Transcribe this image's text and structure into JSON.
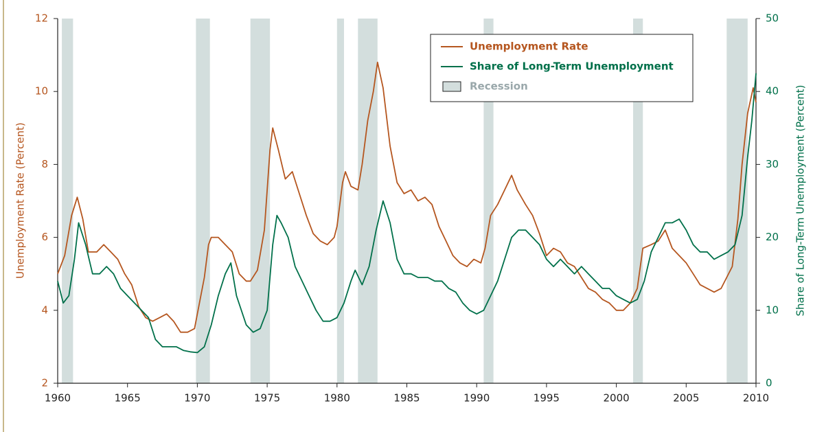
{
  "chart_data": {
    "type": "line",
    "y_label": "Unemployment Rate (Percent)",
    "y2_label": "Share of Long-Term Unemployment (Percent)",
    "xlim": [
      1960,
      2010
    ],
    "xticks": [
      1960,
      1965,
      1970,
      1975,
      1980,
      1985,
      1990,
      1995,
      2000,
      2005,
      2010
    ],
    "ylim": [
      2,
      12
    ],
    "yticks": [
      2,
      4,
      6,
      8,
      10,
      12
    ],
    "y2lim": [
      0,
      50
    ],
    "y2ticks": [
      0,
      10,
      20,
      30,
      40,
      50
    ],
    "legend": "upper right",
    "recession_label": "Recession",
    "recession_color": "#d3dedd",
    "recessions": [
      [
        1960.3,
        1961.1
      ],
      [
        1969.9,
        1970.9
      ],
      [
        1973.8,
        1975.2
      ],
      [
        1980.0,
        1980.5
      ],
      [
        1981.5,
        1982.9
      ],
      [
        1990.5,
        1991.2
      ],
      [
        2001.2,
        2001.9
      ],
      [
        2007.9,
        2009.4
      ]
    ],
    "series": [
      {
        "name": "Unemployment Rate",
        "color": "#b5561f",
        "axis": "y",
        "x": [
          1960.0,
          1960.5,
          1961.0,
          1961.4,
          1961.8,
          1962.2,
          1962.8,
          1963.3,
          1963.8,
          1964.3,
          1964.8,
          1965.3,
          1965.8,
          1966.3,
          1966.8,
          1967.3,
          1967.8,
          1968.3,
          1968.8,
          1969.3,
          1969.8,
          1970.0,
          1970.5,
          1970.8,
          1971.0,
          1971.5,
          1972.0,
          1972.5,
          1973.0,
          1973.5,
          1973.8,
          1974.3,
          1974.8,
          1975.2,
          1975.4,
          1975.8,
          1976.3,
          1976.8,
          1977.3,
          1977.8,
          1978.3,
          1978.8,
          1979.3,
          1979.8,
          1980.0,
          1980.4,
          1980.6,
          1981.0,
          1981.5,
          1981.8,
          1982.2,
          1982.6,
          1982.9,
          1983.3,
          1983.8,
          1984.3,
          1984.8,
          1985.3,
          1985.8,
          1986.3,
          1986.8,
          1987.3,
          1987.8,
          1988.3,
          1988.8,
          1989.3,
          1989.8,
          1990.3,
          1990.6,
          1991.0,
          1991.5,
          1992.0,
          1992.5,
          1992.9,
          1993.5,
          1994.0,
          1994.5,
          1995.0,
          1995.5,
          1996.0,
          1996.5,
          1997.0,
          1997.5,
          1998.0,
          1998.5,
          1999.0,
          1999.5,
          2000.0,
          2000.5,
          2001.0,
          2001.5,
          2001.9,
          2002.5,
          2003.0,
          2003.5,
          2004.0,
          2004.5,
          2005.0,
          2005.5,
          2006.0,
          2006.5,
          2007.0,
          2007.5,
          2007.9,
          2008.3,
          2008.7,
          2009.0,
          2009.4,
          2009.8,
          2010.0
        ],
        "values": [
          5.0,
          5.5,
          6.6,
          7.1,
          6.5,
          5.6,
          5.6,
          5.8,
          5.6,
          5.4,
          5.0,
          4.7,
          4.1,
          3.8,
          3.7,
          3.8,
          3.9,
          3.7,
          3.4,
          3.4,
          3.5,
          3.9,
          4.9,
          5.8,
          6.0,
          6.0,
          5.8,
          5.6,
          5.0,
          4.8,
          4.8,
          5.1,
          6.2,
          8.4,
          9.0,
          8.4,
          7.6,
          7.8,
          7.2,
          6.6,
          6.1,
          5.9,
          5.8,
          6.0,
          6.3,
          7.5,
          7.8,
          7.4,
          7.3,
          8.0,
          9.2,
          10.0,
          10.8,
          10.1,
          8.5,
          7.5,
          7.2,
          7.3,
          7.0,
          7.1,
          6.9,
          6.3,
          5.9,
          5.5,
          5.3,
          5.2,
          5.4,
          5.3,
          5.7,
          6.6,
          6.9,
          7.3,
          7.7,
          7.3,
          6.9,
          6.6,
          6.1,
          5.5,
          5.7,
          5.6,
          5.3,
          5.2,
          4.9,
          4.6,
          4.5,
          4.3,
          4.2,
          4.0,
          4.0,
          4.2,
          4.6,
          5.7,
          5.8,
          5.9,
          6.2,
          5.7,
          5.5,
          5.3,
          5.0,
          4.7,
          4.6,
          4.5,
          4.6,
          4.9,
          5.2,
          6.5,
          8.0,
          9.4,
          10.1,
          9.7
        ]
      },
      {
        "name": "Share of Long-Term Unemployment",
        "color": "#00704a",
        "axis": "y2",
        "x": [
          1960.0,
          1960.4,
          1960.8,
          1961.2,
          1961.5,
          1962.0,
          1962.5,
          1963.0,
          1963.5,
          1964.0,
          1964.5,
          1965.0,
          1965.5,
          1966.0,
          1966.5,
          1967.0,
          1967.5,
          1968.0,
          1968.5,
          1969.0,
          1969.5,
          1970.0,
          1970.5,
          1971.0,
          1971.5,
          1972.0,
          1972.4,
          1972.8,
          1973.5,
          1974.0,
          1974.5,
          1975.0,
          1975.4,
          1975.7,
          1976.0,
          1976.5,
          1977.0,
          1977.5,
          1978.0,
          1978.5,
          1979.0,
          1979.5,
          1980.0,
          1980.5,
          1981.0,
          1981.3,
          1981.8,
          1982.3,
          1982.8,
          1983.3,
          1983.8,
          1984.3,
          1984.8,
          1985.3,
          1985.8,
          1986.5,
          1987.0,
          1987.5,
          1988.0,
          1988.5,
          1989.0,
          1989.5,
          1990.0,
          1990.5,
          1991.0,
          1991.5,
          1992.0,
          1992.5,
          1993.0,
          1993.5,
          1994.0,
          1994.5,
          1995.0,
          1995.5,
          1996.0,
          1996.5,
          1997.0,
          1997.5,
          1998.0,
          1998.5,
          1999.0,
          1999.5,
          2000.0,
          2000.5,
          2001.0,
          2001.5,
          2002.0,
          2002.5,
          2003.0,
          2003.5,
          2004.0,
          2004.5,
          2005.0,
          2005.5,
          2006.0,
          2006.5,
          2007.0,
          2007.5,
          2008.0,
          2008.5,
          2009.0,
          2009.4,
          2009.7,
          2010.0
        ],
        "values": [
          14,
          11,
          12,
          17,
          22,
          19,
          15,
          15,
          16,
          15,
          13,
          12,
          11,
          10,
          9,
          6,
          5,
          5,
          5,
          4.5,
          4.3,
          4.2,
          5,
          8,
          12,
          15,
          16.5,
          12,
          8,
          7,
          7.5,
          10,
          19,
          23,
          22,
          20,
          16,
          14,
          12,
          10,
          8.5,
          8.5,
          9,
          11,
          14,
          15.5,
          13.5,
          16,
          21,
          25,
          22,
          17,
          15,
          15,
          14.5,
          14.5,
          14,
          14,
          13,
          12.5,
          11,
          10,
          9.5,
          10,
          12,
          14,
          17,
          20,
          21,
          21,
          20,
          19,
          17,
          16,
          17,
          16,
          15,
          16,
          15,
          14,
          13,
          13,
          12,
          11.5,
          11,
          11.5,
          14,
          18,
          20,
          22,
          22,
          22.5,
          21,
          19,
          18,
          18,
          17,
          17.5,
          18,
          19,
          23,
          31,
          36,
          42.5
        ]
      }
    ]
  }
}
